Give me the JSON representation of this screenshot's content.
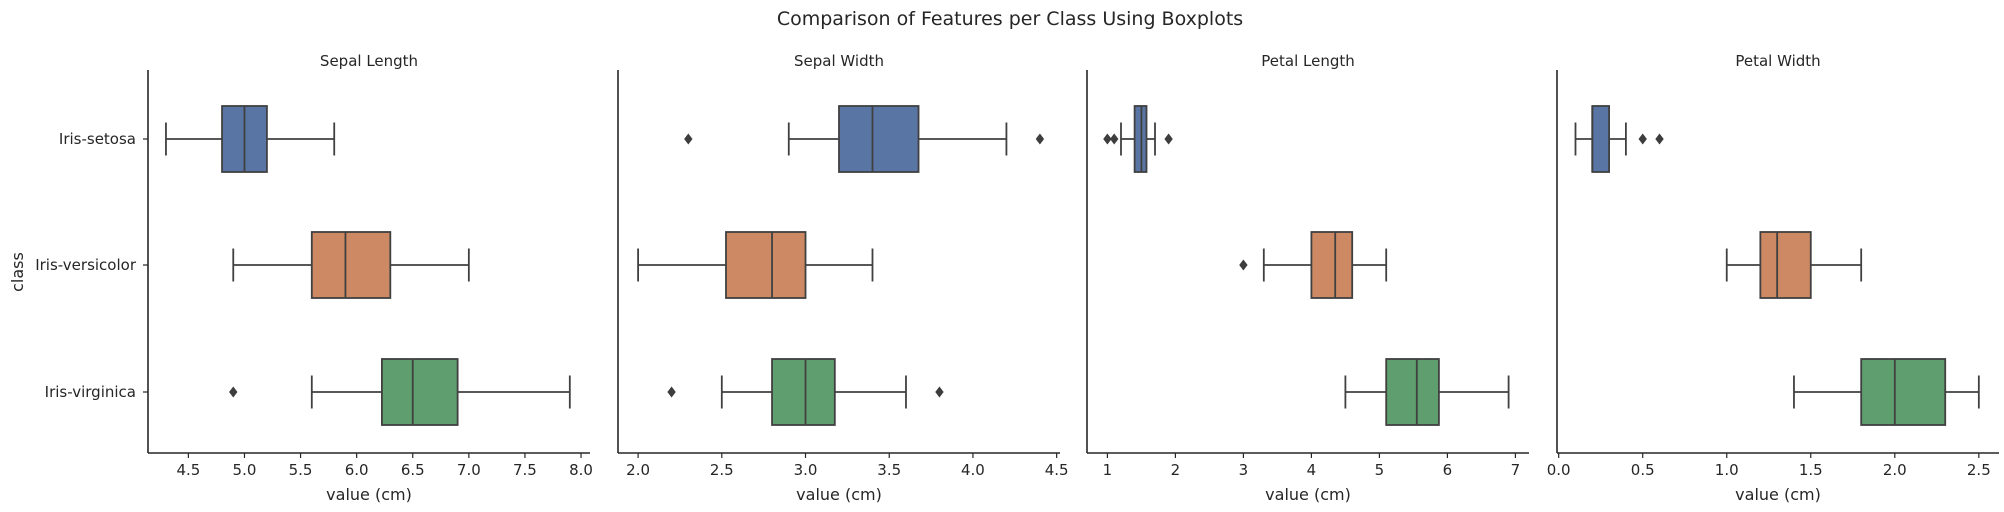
{
  "colors": {
    "Iris-setosa": "#5875a4",
    "Iris-versicolor": "#cc8963",
    "Iris-virginica": "#5f9e6e",
    "line": "#404040"
  },
  "chart_data": {
    "type": "boxplot",
    "suptitle": "Comparison of Features per Class Using Boxplots",
    "ylabel": "class",
    "categories": [
      "Iris-setosa",
      "Iris-versicolor",
      "Iris-virginica"
    ],
    "grid": false,
    "panels": [
      {
        "title": "Sepal Length",
        "xlabel": "value (cm)",
        "xlim": [
          4.14,
          8.08
        ],
        "xticks": [
          4.5,
          5.0,
          5.5,
          6.0,
          6.5,
          7.0,
          7.5,
          8.0
        ],
        "xtick_labels": [
          "4.5",
          "5.0",
          "5.5",
          "6.0",
          "6.5",
          "7.0",
          "7.5",
          "8.0"
        ],
        "boxes": [
          {
            "class": "Iris-setosa",
            "whisker_low": 4.3,
            "q1": 4.8,
            "median": 5.0,
            "q3": 5.2,
            "whisker_high": 5.8,
            "outliers": []
          },
          {
            "class": "Iris-versicolor",
            "whisker_low": 4.9,
            "q1": 5.6,
            "median": 5.9,
            "q3": 6.3,
            "whisker_high": 7.0,
            "outliers": []
          },
          {
            "class": "Iris-virginica",
            "whisker_low": 5.6,
            "q1": 6.225,
            "median": 6.5,
            "q3": 6.9,
            "whisker_high": 7.9,
            "outliers": [
              4.9
            ]
          }
        ]
      },
      {
        "title": "Sepal Width",
        "xlabel": "value (cm)",
        "xlim": [
          1.88,
          4.52
        ],
        "xticks": [
          2.0,
          2.5,
          3.0,
          3.5,
          4.0,
          4.5
        ],
        "xtick_labels": [
          "2.0",
          "2.5",
          "3.0",
          "3.5",
          "4.0",
          "4.5"
        ],
        "boxes": [
          {
            "class": "Iris-setosa",
            "whisker_low": 2.9,
            "q1": 3.2,
            "median": 3.4,
            "q3": 3.675,
            "whisker_high": 4.2,
            "outliers": [
              2.3,
              4.4
            ]
          },
          {
            "class": "Iris-versicolor",
            "whisker_low": 2.0,
            "q1": 2.525,
            "median": 2.8,
            "q3": 3.0,
            "whisker_high": 3.4,
            "outliers": []
          },
          {
            "class": "Iris-virginica",
            "whisker_low": 2.5,
            "q1": 2.8,
            "median": 3.0,
            "q3": 3.175,
            "whisker_high": 3.6,
            "outliers": [
              2.2,
              3.8
            ]
          }
        ]
      },
      {
        "title": "Petal Length",
        "xlabel": "value (cm)",
        "xlim": [
          0.7,
          7.2
        ],
        "xticks": [
          1,
          2,
          3,
          4,
          5,
          6,
          7
        ],
        "xtick_labels": [
          "1",
          "2",
          "3",
          "4",
          "5",
          "6",
          "7"
        ],
        "boxes": [
          {
            "class": "Iris-setosa",
            "whisker_low": 1.2,
            "q1": 1.4,
            "median": 1.5,
            "q3": 1.575,
            "whisker_high": 1.7,
            "outliers": [
              1.0,
              1.1,
              1.9
            ]
          },
          {
            "class": "Iris-versicolor",
            "whisker_low": 3.3,
            "q1": 4.0,
            "median": 4.35,
            "q3": 4.6,
            "whisker_high": 5.1,
            "outliers": [
              3.0
            ]
          },
          {
            "class": "Iris-virginica",
            "whisker_low": 4.5,
            "q1": 5.1,
            "median": 5.55,
            "q3": 5.875,
            "whisker_high": 6.9,
            "outliers": []
          }
        ]
      },
      {
        "title": "Petal Width",
        "xlabel": "value (cm)",
        "xlim": [
          -0.01,
          2.62
        ],
        "xticks": [
          0.0,
          0.5,
          1.0,
          1.5,
          2.0,
          2.5
        ],
        "xtick_labels": [
          "0.0",
          "0.5",
          "1.0",
          "1.5",
          "2.0",
          "2.5"
        ],
        "boxes": [
          {
            "class": "Iris-setosa",
            "whisker_low": 0.1,
            "q1": 0.2,
            "median": 0.2,
            "q3": 0.3,
            "whisker_high": 0.4,
            "outliers": [
              0.5,
              0.6
            ]
          },
          {
            "class": "Iris-versicolor",
            "whisker_low": 1.0,
            "q1": 1.2,
            "median": 1.3,
            "q3": 1.5,
            "whisker_high": 1.8,
            "outliers": []
          },
          {
            "class": "Iris-virginica",
            "whisker_low": 1.4,
            "q1": 1.8,
            "median": 2.0,
            "q3": 2.3,
            "whisker_high": 2.5,
            "outliers": []
          }
        ]
      }
    ]
  }
}
